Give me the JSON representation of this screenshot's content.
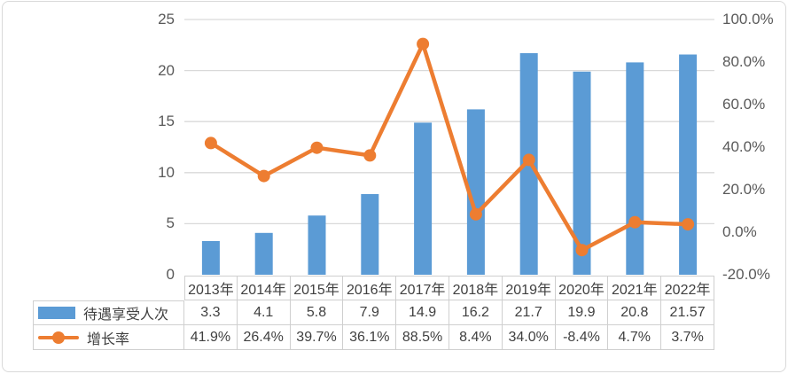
{
  "chart_data": {
    "type": "combo",
    "categories": [
      "2013年",
      "2014年",
      "2015年",
      "2016年",
      "2017年",
      "2018年",
      "2019年",
      "2020年",
      "2021年",
      "2022年"
    ],
    "series": [
      {
        "name": "待遇享受人次",
        "type": "bar",
        "axis": "left",
        "values": [
          3.3,
          4.1,
          5.8,
          7.9,
          14.9,
          16.2,
          21.7,
          19.9,
          20.8,
          21.57
        ],
        "display": [
          "3.3",
          "4.1",
          "5.8",
          "7.9",
          "14.9",
          "16.2",
          "21.7",
          "19.9",
          "20.8",
          "21.57"
        ]
      },
      {
        "name": "增长率",
        "type": "line",
        "axis": "right",
        "values": [
          41.9,
          26.4,
          39.7,
          36.1,
          88.5,
          8.4,
          34.0,
          -8.4,
          4.7,
          3.7
        ],
        "display": [
          "41.9%",
          "26.4%",
          "39.7%",
          "36.1%",
          "88.5%",
          "8.4%",
          "34.0%",
          "-8.4%",
          "4.7%",
          "3.7%"
        ]
      }
    ],
    "left_axis": {
      "min": 0,
      "max": 25,
      "step": 5,
      "ticks": [
        "25",
        "20",
        "15",
        "10",
        "5",
        "0"
      ]
    },
    "right_axis": {
      "min": -20,
      "max": 100,
      "step": 20,
      "ticks": [
        "100.0%",
        "80.0%",
        "60.0%",
        "40.0%",
        "20.0%",
        "0.0%",
        "-20.0%"
      ]
    },
    "grid": true,
    "legend_position": "table-left",
    "title": ""
  },
  "colors": {
    "bar": "#5B9BD5",
    "line": "#ED7D31",
    "grid": "#D9D9D9",
    "axis_text": "#595959",
    "table_text": "#404040",
    "table_border": "#CFCFCF",
    "frame_border": "#D9D9D9",
    "background": "#FFFFFF"
  }
}
